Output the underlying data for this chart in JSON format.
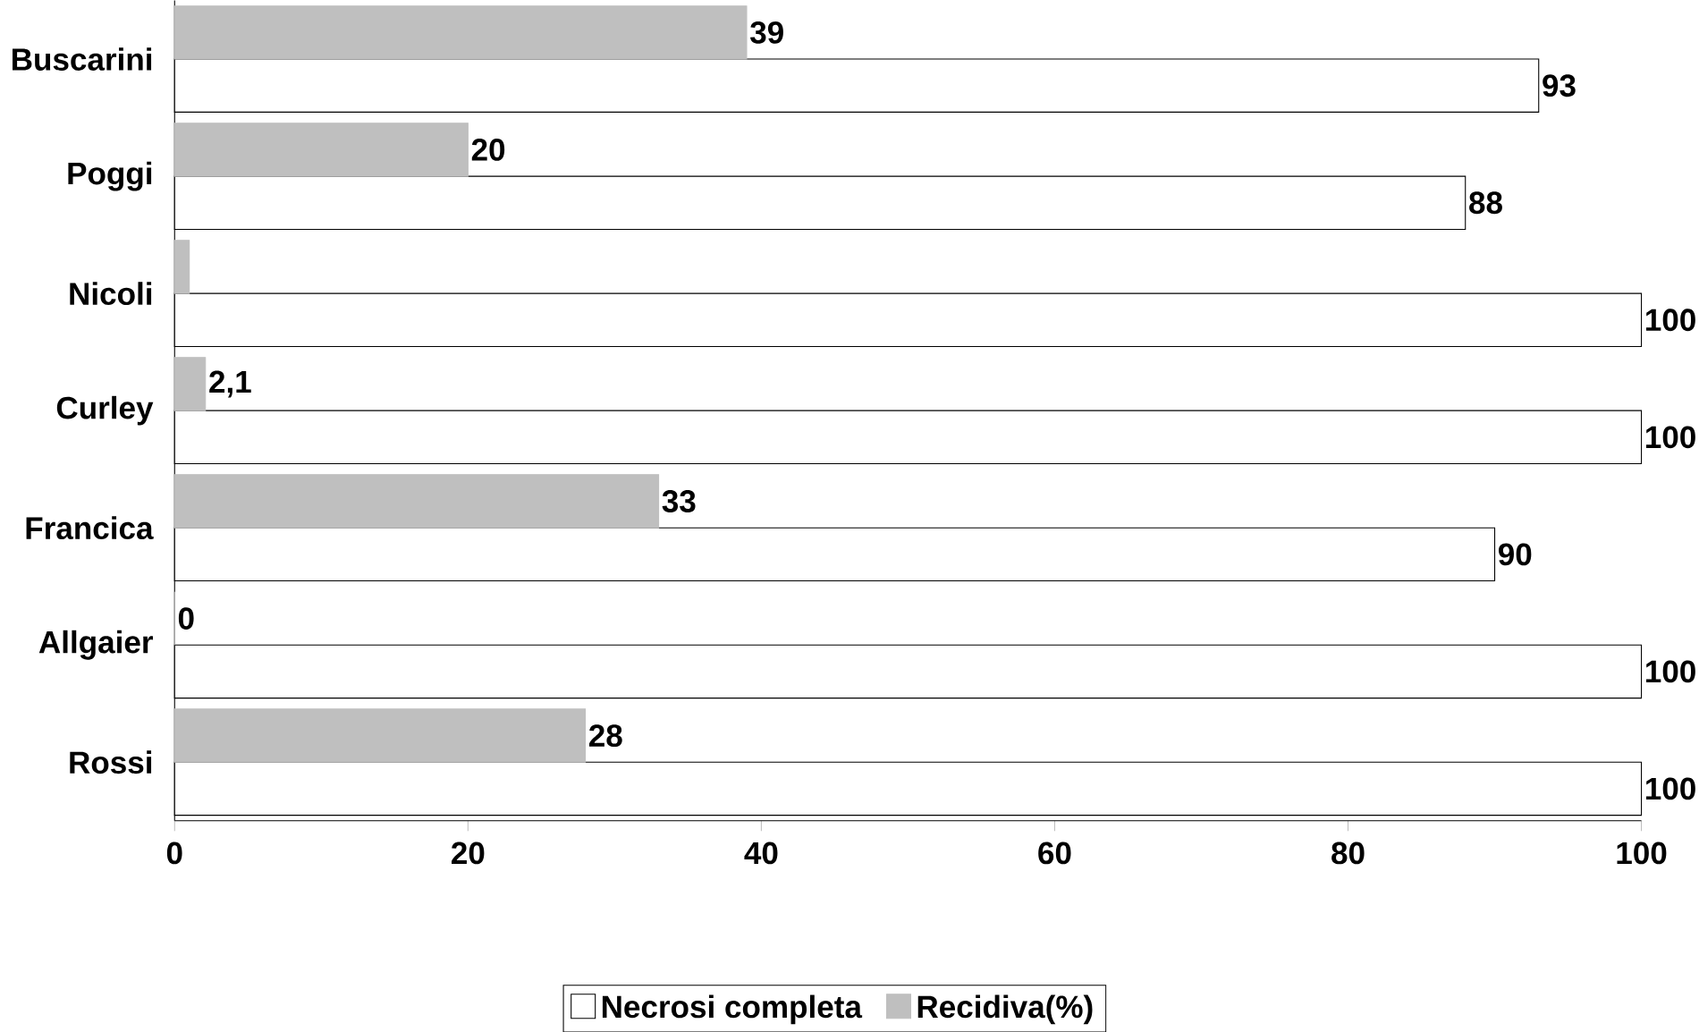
{
  "chart_data": {
    "type": "bar",
    "orientation": "horizontal",
    "categories": [
      "Buscarini",
      "Poggi",
      "Nicoli",
      "Curley",
      "Francica",
      "Allgaier",
      "Rossi"
    ],
    "series": [
      {
        "name": "Necrosi completa",
        "color": "#ffffff",
        "values": [
          93,
          88,
          100,
          100,
          90,
          100,
          100
        ],
        "value_labels": [
          "93",
          "88",
          "100",
          "100",
          "90",
          "100",
          "100"
        ]
      },
      {
        "name": "Recidiva(%)",
        "color": "#bfbfbf",
        "values": [
          39,
          20,
          1,
          2.1,
          33,
          0,
          28
        ],
        "value_labels": [
          "39",
          "20",
          null,
          "2,1",
          "33",
          "0",
          "28"
        ]
      }
    ],
    "xlim": [
      0,
      100
    ],
    "xticks": [
      0,
      20,
      40,
      60,
      80,
      100
    ],
    "grid": false,
    "legend": "bottom"
  }
}
